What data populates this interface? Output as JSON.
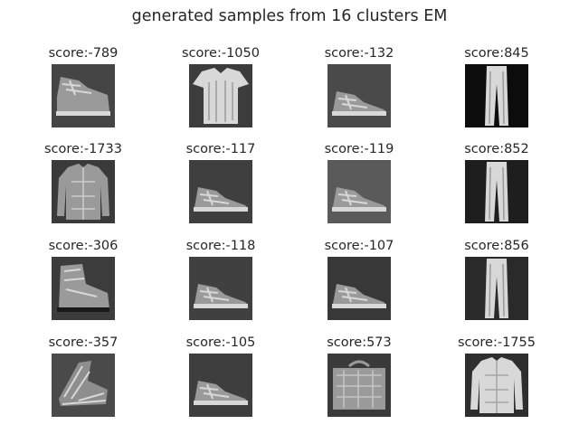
{
  "figure": {
    "title": "generated samples from 16 clusters EM"
  },
  "samples": [
    {
      "score": "score:-789",
      "item": "sneaker-boot",
      "bg": "#454545"
    },
    {
      "score": "score:-1050",
      "item": "tshirt",
      "bg": "#3c3c3c"
    },
    {
      "score": "score:-132",
      "item": "sneaker",
      "bg": "#4a4a4a"
    },
    {
      "score": "score:845",
      "item": "trousers",
      "bg": "#0c0c0c"
    },
    {
      "score": "score:-1733",
      "item": "shirt",
      "bg": "#3a3a3a"
    },
    {
      "score": "score:-117",
      "item": "sneaker",
      "bg": "#3f3f3f"
    },
    {
      "score": "score:-119",
      "item": "sneaker",
      "bg": "#5a5a5a"
    },
    {
      "score": "score:852",
      "item": "trousers",
      "bg": "#1e1e1e"
    },
    {
      "score": "score:-306",
      "item": "ankle-boot",
      "bg": "#3c3c3c"
    },
    {
      "score": "score:-118",
      "item": "sneaker",
      "bg": "#404040"
    },
    {
      "score": "score:-107",
      "item": "sneaker",
      "bg": "#383838"
    },
    {
      "score": "score:856",
      "item": "trousers",
      "bg": "#2a2a2a"
    },
    {
      "score": "score:-357",
      "item": "sandal",
      "bg": "#4a4a4a"
    },
    {
      "score": "score:-105",
      "item": "sneaker",
      "bg": "#3e3e3e"
    },
    {
      "score": "score:573",
      "item": "bag",
      "bg": "#3a3a3a"
    },
    {
      "score": "score:-1755",
      "item": "pullover",
      "bg": "#2e2e2e"
    }
  ]
}
